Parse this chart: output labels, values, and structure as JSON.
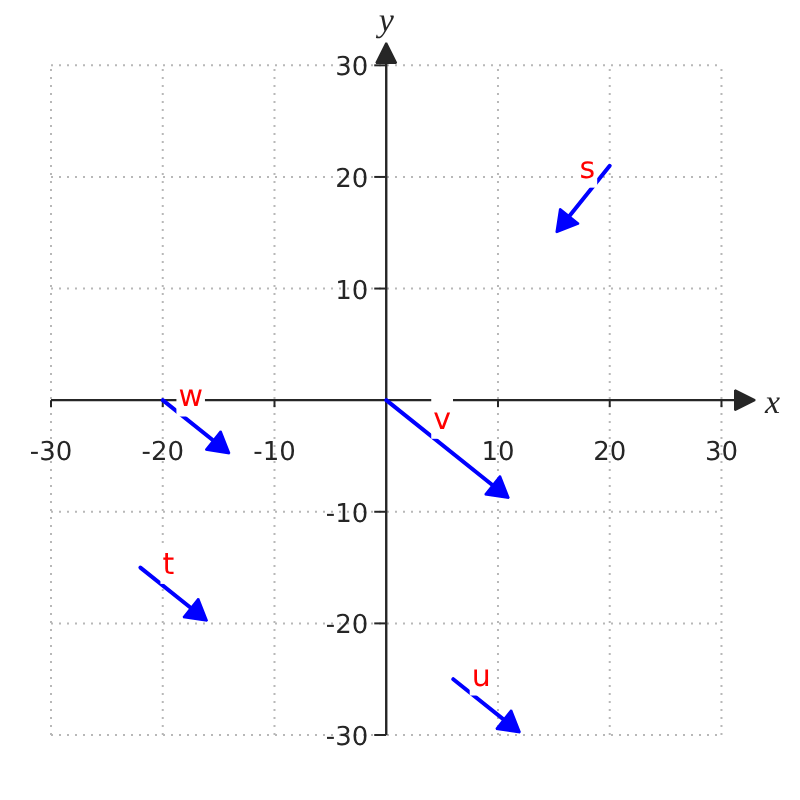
{
  "chart_data": {
    "type": "line",
    "xlabel": "x",
    "ylabel": "y",
    "xlim": [
      -30,
      33
    ],
    "ylim": [
      -30,
      32
    ],
    "xticks": [
      -30,
      -20,
      -10,
      10,
      20,
      30
    ],
    "yticks": [
      -30,
      -20,
      -10,
      10,
      20,
      30
    ],
    "grid": true,
    "series": [
      {
        "name": "s",
        "color": "#0000ff",
        "x": [
          20,
          16
        ],
        "values": [
          21,
          16
        ]
      },
      {
        "name": "t",
        "color": "#0000ff",
        "x": [
          -22,
          -17
        ],
        "values": [
          -15,
          -19
        ]
      },
      {
        "name": "u",
        "color": "#0000ff",
        "x": [
          6,
          11
        ],
        "values": [
          -25,
          -29
        ]
      },
      {
        "name": "v",
        "color": "#0000ff",
        "x": [
          0,
          10
        ],
        "values": [
          0,
          -8
        ]
      },
      {
        "name": "w",
        "color": "#0000ff",
        "x": [
          -20,
          -15
        ],
        "values": [
          0,
          -4
        ]
      }
    ]
  }
}
